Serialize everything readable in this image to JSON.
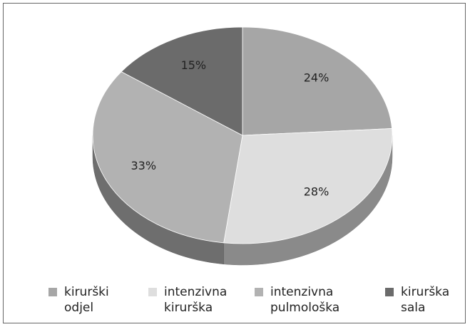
{
  "chart_data": {
    "type": "pie3d",
    "categories": [
      "kirurški odjel",
      "intenzivna kirurška",
      "intenzivna pulmološka",
      "kirurška sala"
    ],
    "values": [
      24,
      28,
      33,
      15
    ],
    "value_labels": [
      "24%",
      "28%",
      "33%",
      "15%"
    ],
    "colors": [
      "#a6a6a6",
      "#dedede",
      "#b2b2b2",
      "#6b6b6b"
    ],
    "legend": "bottom"
  }
}
